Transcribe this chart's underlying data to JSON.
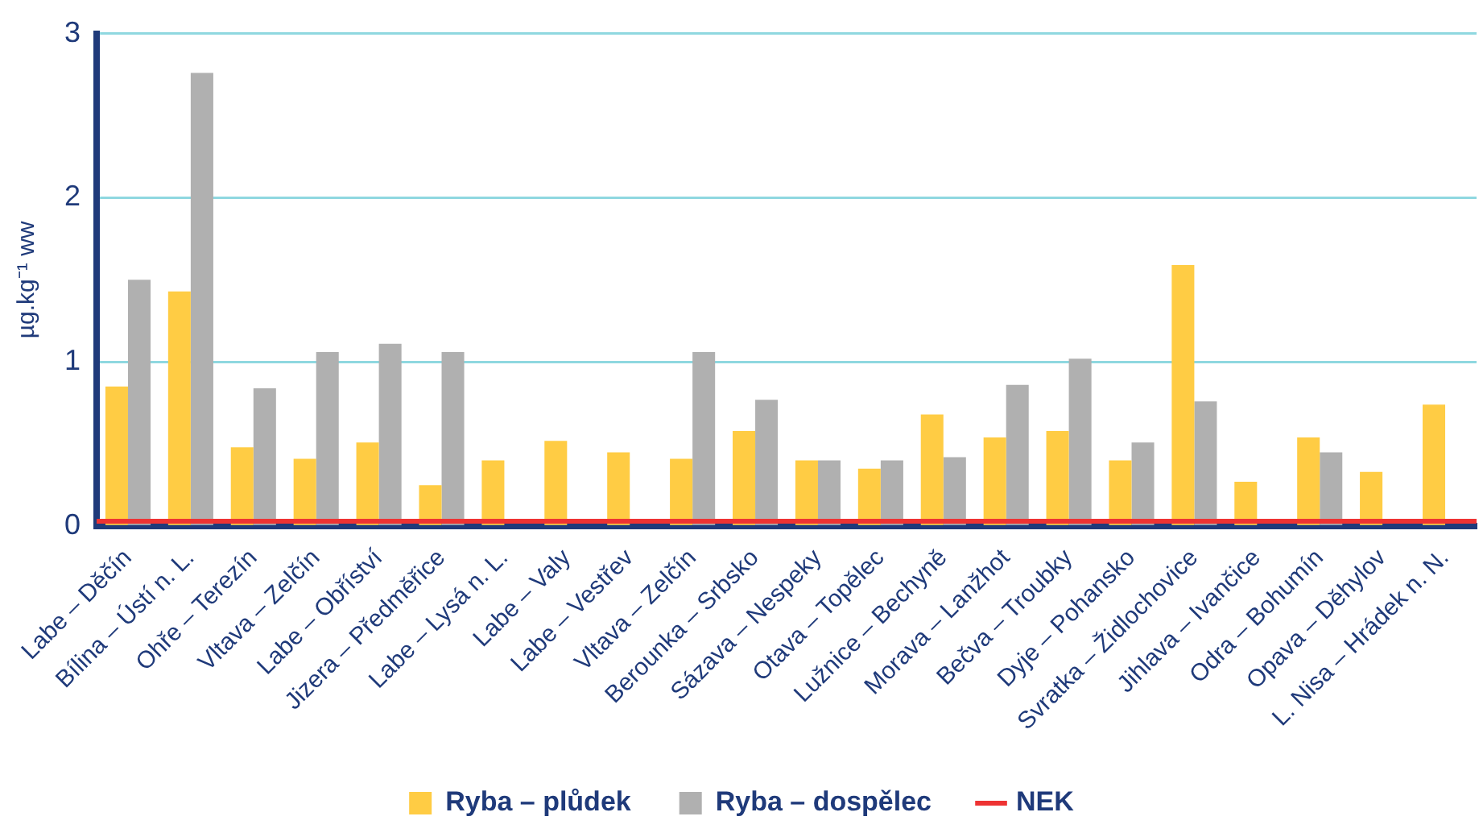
{
  "chart_data": {
    "type": "bar",
    "ylabel": "µg.kg⁻¹ ww",
    "categories": [
      "Labe – Děčín",
      "Bílina – Ústí n. L.",
      "Ohře – Terezín",
      "Vltava – Zelčín",
      "Labe – Obříství",
      "Jizera – Předměřice",
      "Labe – Lysá n. L.",
      "Labe – Valy",
      "Labe – Vestřev",
      "Vltava – Zelčín",
      "Berounka – Srbsko",
      "Sázava – Nespeky",
      "Otava – Topělec",
      "Lužnice – Bechyně",
      "Morava – Lanžhot",
      "Bečva – Troubky",
      "Dyje – Pohansko",
      "Svratka – Židlochovice",
      "Jihlava – Ivančice",
      "Odra – Bohumín",
      "Opava – Děhylov",
      "L. Nisa – Hrádek n. N."
    ],
    "series": [
      {
        "name": "Ryba – plůdek",
        "color": "#ffcc44",
        "values": [
          0.85,
          1.43,
          0.48,
          0.41,
          0.51,
          0.25,
          0.4,
          0.52,
          0.45,
          0.41,
          0.58,
          0.4,
          0.35,
          0.68,
          0.54,
          0.58,
          0.4,
          1.59,
          0.27,
          0.54,
          0.33,
          0.74
        ]
      },
      {
        "name": "Ryba – dospělec",
        "color": "#b0b0b0",
        "values": [
          1.5,
          2.76,
          0.84,
          1.06,
          1.11,
          1.06,
          null,
          null,
          null,
          1.06,
          0.77,
          0.4,
          0.4,
          0.42,
          0.86,
          1.02,
          0.51,
          0.76,
          null,
          0.45,
          null,
          null
        ]
      }
    ],
    "ylim": [
      0,
      3
    ],
    "yticks": [
      0,
      1,
      2,
      3
    ],
    "grid": "y",
    "legend": "bottom",
    "ref_lines": [
      {
        "axis": "y",
        "value": 0.03,
        "label": "NEK",
        "color": "#ee3333"
      }
    ]
  }
}
